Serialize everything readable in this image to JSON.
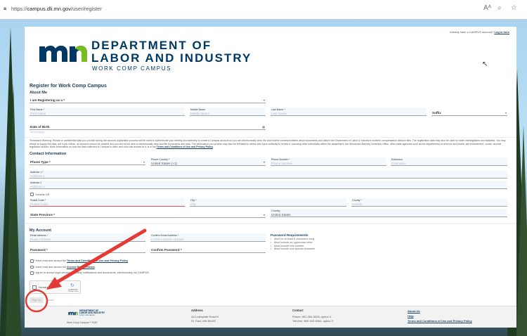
{
  "browser": {
    "url_prefix": "https://",
    "url_host": "campus.dli.mn.gov",
    "url_path": "/user/register",
    "icons": [
      "lock-icon",
      "read-aloud-icon",
      "zoom-icon",
      "favorite-icon"
    ]
  },
  "header": {
    "login_prompt": "Already have a CAMPUS account?",
    "login_link": "Log in here",
    "logo_line1": "DEPARTMENT OF",
    "logo_line2": "LABOR AND INDUSTRY",
    "logo_line3": "WORK COMP CAMPUS",
    "logo_letters": "mn"
  },
  "colors": {
    "navy": "#003865",
    "green": "#78be21",
    "heading": "#1b3f5e",
    "annotation_red": "#e53935"
  },
  "form": {
    "title": "Register for Work Comp Campus",
    "about": {
      "heading": "About Me",
      "registering_as": "I am Registering as a *",
      "first_name_label": "First Name *",
      "first_name_ph": "First Name",
      "middle_name_label": "Middle Name",
      "middle_name_ph": "Middle Name",
      "last_name_label": "Last Name *",
      "last_name_ph": "Last Name",
      "suffix": "Suffix",
      "dob_label": "Date of Birth",
      "dob_ph": "mm/dd/yyyy"
    },
    "warning": {
      "text": "Tennessen Warning: Private or confidential data you provide during the account registration process will be used to authenticate your identity and authority to create a Campus account so you can electronically view, file and receive communications about documents and data in the Department of Labor & Industry's workers' compensation division files. The registration data may also be used for state investigations and statistics. You may refuse to supply the data, but if you refuse, an account cannot be created and you will not be able to electronically view and file documents and data. The information you provide may also be released to others who have authority to review it, including other individuals within the department, the Minnesota Attorney General's Office, other state agencies such as the departments of revenue and health, law enforcement, courts, and the legislative auditor. More information on how the data collected in Campus is used, and who has access to it, is in the",
      "link": "Terms and Conditions of Use and Privacy Policy"
    },
    "contact": {
      "heading": "Contact Information",
      "phone_type": "Phone Type *",
      "phone_country_label": "Phone Country *",
      "phone_country_value": "United States (+1)",
      "phone_number_label": "Phone Number *",
      "phone_number_ph": "Phone Number",
      "extension_label": "Extension",
      "extension_ph": "Extension",
      "address1_label": "Address 1 *",
      "address1_ph": "Address 1",
      "address2_label": "Address 2",
      "address2_ph": "Address 2",
      "outside_us": "Outside US",
      "postal_label": "Postal Code *",
      "postal_ph": "Postal Code",
      "city_label": "City *",
      "city_ph": "City",
      "county_label": "County *",
      "county_ph": "County",
      "state": "State Province *",
      "country_label": "Country",
      "country_value": "United States"
    },
    "account": {
      "heading": "My Account",
      "email_label": "Email Address *",
      "email_ph": "Email Address",
      "confirm_email_label": "Confirm Email Address *",
      "confirm_email_ph": "Confirm Email Address",
      "password": "Password *",
      "confirm_password": "Confirm Password *",
      "req_heading": "Password Requirements",
      "requirements": [
        "Must be at least 8 characters long",
        "Must include an uppercase letter",
        "Must include one number",
        "Must include one special character"
      ]
    },
    "agreements": [
      {
        "pre": "I have read and accept the ",
        "link": "Terms and Conditions of Use and Privacy Policy"
      },
      {
        "pre": "I have read and accept the ",
        "link": "Access Requirements"
      },
      {
        "pre": "I agree to accept legal service, including notifications and documents, electronically via CAMPUS.",
        "link": ""
      }
    ],
    "captcha": {
      "label": "I'm not a robot",
      "brand": "reCAPTCHA",
      "terms": "Privacy - Terms"
    },
    "sign_up": "Sign Up",
    "cancel": "Cancel"
  },
  "footer": {
    "copyright": "Work Comp Campus™ 2019",
    "address_heading": "Address",
    "address_lines": [
      "443 Lafayette Road N",
      "St. Paul, MN 55155"
    ],
    "contact_heading": "Contact",
    "contact_lines": [
      "Phone: 651-284-5005, option 3",
      "Toll-free: 800-342-5354, option 3"
    ],
    "links": [
      "About Us",
      "Help",
      "Terms and Conditions of Use and Privacy Policy"
    ]
  }
}
